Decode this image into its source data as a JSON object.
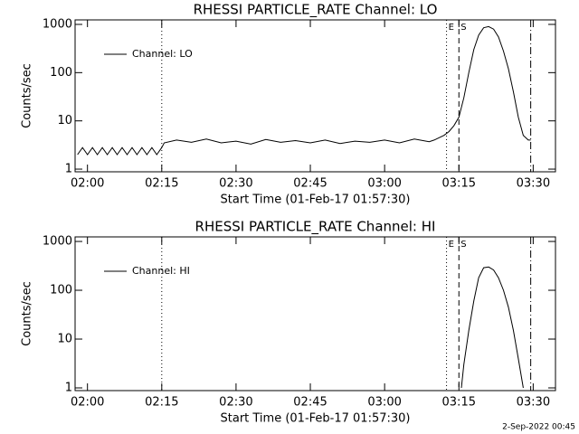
{
  "chart_data": [
    {
      "type": "line",
      "title": "RHESSI PARTICLE_RATE Channel: LO",
      "xlabel": "Start Time (01-Feb-17 01:57:30)",
      "ylabel": "Counts/sec",
      "log_y": true,
      "xlim": [
        "01:57:30",
        "03:34:30"
      ],
      "xticks": [
        "02:00",
        "02:15",
        "02:30",
        "02:45",
        "03:00",
        "03:15",
        "03:30"
      ],
      "ylim": [
        0.88,
        1240
      ],
      "yticks": [
        1,
        10,
        100,
        1000
      ],
      "legend": "upper left",
      "markers": [
        {
          "x": "02:15",
          "style": "dotted"
        },
        {
          "x": "03:12:30",
          "style": "dotted",
          "label": "E"
        },
        {
          "x": "03:15",
          "style": "dashed",
          "label": "S"
        },
        {
          "x": "03:29:30",
          "style": "dashdot"
        }
      ],
      "series": [
        {
          "name": "Channel: LO",
          "color": "#000000",
          "x": [
            "01:58",
            "01:59",
            "02:00",
            "02:01",
            "02:02",
            "02:03",
            "02:04",
            "02:05",
            "02:06",
            "02:07",
            "02:08",
            "02:09",
            "02:10",
            "02:11",
            "02:12",
            "02:13",
            "02:14",
            "02:15",
            "02:15:30",
            "02:18",
            "02:21",
            "02:24",
            "02:27",
            "02:30",
            "02:33",
            "02:36",
            "02:39",
            "02:42",
            "02:45",
            "02:48",
            "02:51",
            "02:54",
            "02:57",
            "03:00",
            "03:03",
            "03:06",
            "03:09",
            "03:10",
            "03:12",
            "03:13",
            "03:14",
            "03:15",
            "03:16",
            "03:17",
            "03:18",
            "03:19",
            "03:20",
            "03:21",
            "03:22",
            "03:23",
            "03:24",
            "03:25",
            "03:26",
            "03:27",
            "03:28",
            "03:29",
            "03:29:30"
          ],
          "values": [
            2,
            2.8,
            2,
            2.8,
            2,
            2.8,
            2,
            2.8,
            2,
            2.8,
            2,
            2.8,
            2,
            2.8,
            2,
            2.8,
            2,
            2.8,
            3.5,
            4,
            3.6,
            4.2,
            3.5,
            3.8,
            3.3,
            4.1,
            3.6,
            3.9,
            3.5,
            4,
            3.4,
            3.8,
            3.6,
            4,
            3.5,
            4.2,
            3.7,
            4,
            5,
            6,
            8,
            12,
            30,
            100,
            300,
            600,
            850,
            900,
            800,
            550,
            280,
            120,
            40,
            12,
            5,
            4,
            4
          ]
        }
      ]
    },
    {
      "type": "line",
      "title": "RHESSI PARTICLE_RATE Channel: HI",
      "xlabel": "Start Time (01-Feb-17 01:57:30)",
      "ylabel": "Counts/sec",
      "log_y": true,
      "xlim": [
        "01:57:30",
        "03:34:30"
      ],
      "xticks": [
        "02:00",
        "02:15",
        "02:30",
        "02:45",
        "03:00",
        "03:15",
        "03:30"
      ],
      "ylim": [
        0.88,
        1240
      ],
      "yticks": [
        1,
        10,
        100,
        1000
      ],
      "legend": "upper left",
      "markers": [
        {
          "x": "02:15",
          "style": "dotted"
        },
        {
          "x": "03:12:30",
          "style": "dotted",
          "label": "E"
        },
        {
          "x": "03:15",
          "style": "dashed",
          "label": "S"
        },
        {
          "x": "03:29:30",
          "style": "dashdot"
        }
      ],
      "series": [
        {
          "name": "Channel: HI",
          "color": "#000000",
          "x": [
            "03:15:30",
            "03:16",
            "03:17",
            "03:18",
            "03:19",
            "03:20",
            "03:21",
            "03:22",
            "03:23",
            "03:24",
            "03:25",
            "03:26",
            "03:27",
            "03:28"
          ],
          "values": [
            1,
            3,
            15,
            60,
            180,
            290,
            300,
            260,
            180,
            100,
            45,
            15,
            4,
            1
          ]
        }
      ]
    }
  ],
  "footer": "2-Sep-2022 00:45"
}
